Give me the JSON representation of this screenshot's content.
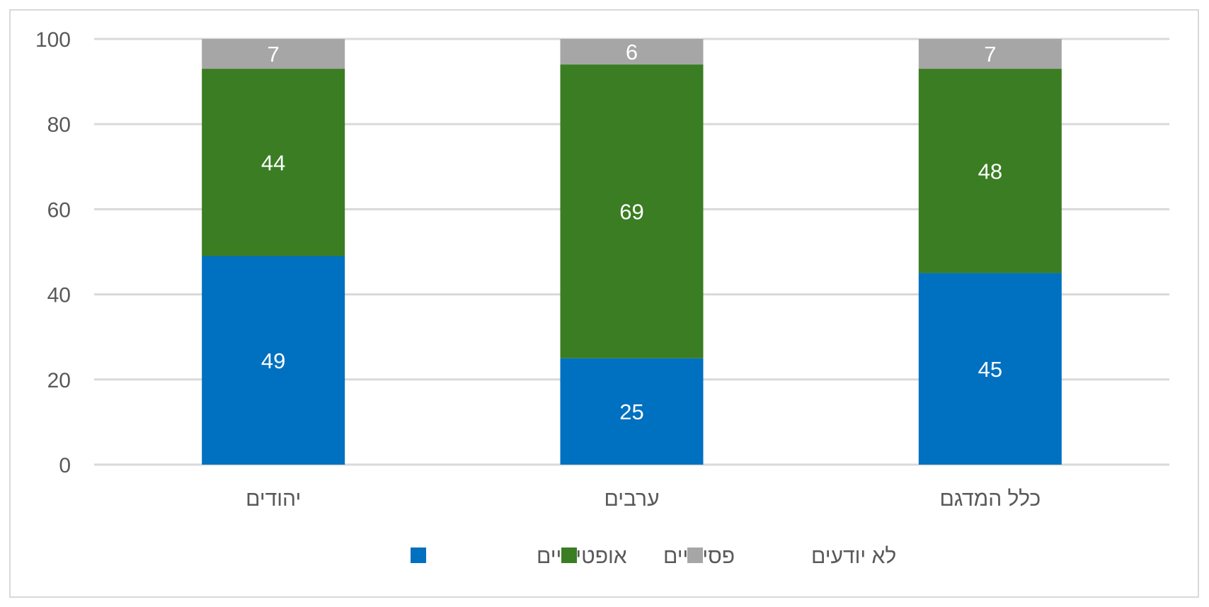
{
  "chart_data": {
    "type": "bar",
    "stacked": true,
    "categories": [
      "יהודים",
      "ערבים",
      "כלל המדגם"
    ],
    "series": [
      {
        "name": "אופטימיים",
        "values": [
          49,
          25,
          45
        ],
        "color": "#0070c0"
      },
      {
        "name": "פסימיים",
        "values": [
          44,
          69,
          48
        ],
        "color": "#3a7d22"
      },
      {
        "name": "לא יודעים",
        "values": [
          7,
          6,
          7
        ],
        "color": "#a6a6a6"
      }
    ],
    "ylim": [
      0,
      100
    ],
    "yticks": [
      0,
      20,
      40,
      60,
      80,
      100
    ],
    "title": "",
    "xlabel": "",
    "ylabel": "",
    "grid": true,
    "legend_position": "bottom",
    "gridline_color": "#d9d9d9"
  }
}
